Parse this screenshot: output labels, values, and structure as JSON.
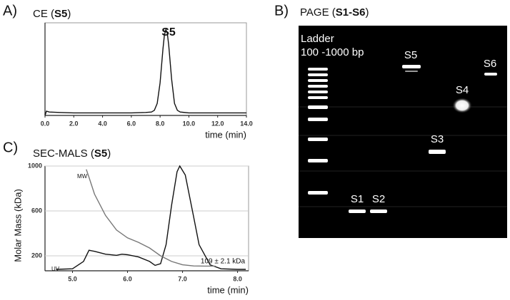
{
  "chart_data": [
    {
      "type": "line",
      "panel_label": "A)",
      "title_parts": [
        "CE (",
        "S5",
        ")"
      ],
      "x": [
        0,
        0.1,
        0.3,
        1,
        2,
        3,
        4,
        5,
        6,
        7,
        7.4,
        7.6,
        7.8,
        8.0,
        8.2,
        8.3,
        8.4,
        8.5,
        8.6,
        8.8,
        9.0,
        9.2,
        9.4,
        10,
        12,
        14
      ],
      "values": [
        0.0,
        0.05,
        0.04,
        0.035,
        0.03,
        0.03,
        0.03,
        0.03,
        0.03,
        0.035,
        0.04,
        0.06,
        0.14,
        0.38,
        0.78,
        0.94,
        1.0,
        0.96,
        0.82,
        0.42,
        0.14,
        0.06,
        0.04,
        0.03,
        0.03,
        0.03
      ],
      "color": "#111111",
      "xlim": [
        0,
        14
      ],
      "ylim": [
        0,
        1.08
      ],
      "xticks": [
        {
          "value": 0,
          "label": "0.0"
        },
        {
          "value": 2,
          "label": "2.0"
        },
        {
          "value": 4,
          "label": "4.0"
        },
        {
          "value": 6,
          "label": "6.0"
        },
        {
          "value": 8,
          "label": "8.0"
        },
        {
          "value": 10,
          "label": "10.0"
        },
        {
          "value": 12,
          "label": "12.0"
        },
        {
          "value": 14,
          "label": "14.0"
        }
      ],
      "xlabel": "time (min)",
      "annotations": [
        "S5"
      ]
    },
    {
      "type": "line",
      "panel_label": "C)",
      "title_parts": [
        "SEC-MALS (",
        "S5",
        ")"
      ],
      "series": [
        {
          "name": "UV",
          "color": "#111111",
          "x": [
            4.7,
            5.0,
            5.2,
            5.3,
            5.4,
            5.6,
            5.8,
            5.9,
            6.0,
            6.2,
            6.4,
            6.5,
            6.6,
            6.7,
            6.8,
            6.9,
            6.95,
            7.05,
            7.2,
            7.3,
            7.5,
            7.7,
            8.0,
            8.15
          ],
          "values": [
            80,
            85,
            150,
            250,
            240,
            215,
            205,
            215,
            210,
            190,
            150,
            115,
            130,
            300,
            650,
            950,
            1000,
            920,
            550,
            300,
            120,
            85,
            80,
            80
          ]
        },
        {
          "name": "MW",
          "color": "#777777",
          "x": [
            5.25,
            5.3,
            5.4,
            5.6,
            5.8,
            6.0,
            6.2,
            6.4,
            6.6,
            6.8,
            7.0,
            7.2,
            7.4,
            7.6
          ],
          "values": [
            970,
            900,
            750,
            560,
            430,
            360,
            320,
            270,
            200,
            150,
            120,
            110,
            109,
            109
          ]
        }
      ],
      "xlim": [
        4.5,
        8.2
      ],
      "ylim": [
        67,
        1000
      ],
      "xticks": [
        {
          "value": 5,
          "label": "5.0"
        },
        {
          "value": 6,
          "label": "6.0"
        },
        {
          "value": 7,
          "label": "7.0"
        },
        {
          "value": 8,
          "label": "8.0"
        }
      ],
      "yticks": [
        200,
        600,
        1000
      ],
      "grid": true,
      "xlabel": "time (min)",
      "ylabel": "Molar Mass (kDa)",
      "annotations": [
        "109 ± 2.1 kDa"
      ]
    }
  ],
  "gel": {
    "panel_label": "B)",
    "title_parts": [
      "PAGE (",
      "S1-S6",
      ")"
    ],
    "ladder_label": "Ladder",
    "ladder_range": "100 -1000 bp",
    "lanes": [
      "S1",
      "S2",
      "S3",
      "S4",
      "S5",
      "S6"
    ]
  }
}
